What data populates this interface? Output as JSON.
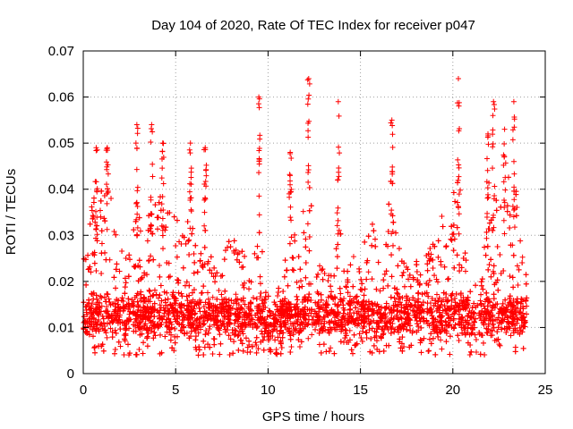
{
  "chart_data": {
    "type": "scatter",
    "title": "Day 104 of 2020, Rate Of TEC Index for receiver p047",
    "xlabel": "GPS time / hours",
    "ylabel": "ROTI / TECUs",
    "xlim": [
      0,
      25
    ],
    "ylim": [
      0,
      0.07
    ],
    "x_ticks": [
      0,
      5,
      10,
      15,
      20,
      25
    ],
    "x_tick_labels": [
      "0",
      "5",
      "10",
      "15",
      "20",
      "25"
    ],
    "y_ticks": [
      0,
      0.01,
      0.02,
      0.03,
      0.04,
      0.05,
      0.06,
      0.07
    ],
    "y_tick_labels": [
      "0",
      "0.01",
      "0.02",
      "0.03",
      "0.04",
      "0.05",
      "0.06",
      "0.07"
    ],
    "grid": true,
    "marker": "+",
    "series_color": "#ff0000",
    "series": [
      {
        "name": "ROTI",
        "x_range": [
          0,
          24
        ],
        "typical_range": [
          0.004,
          0.035
        ],
        "median_band": [
          0.008,
          0.02
        ],
        "peak_points": [
          {
            "x": 0.7,
            "y": 0.049
          },
          {
            "x": 1.3,
            "y": 0.049
          },
          {
            "x": 2.9,
            "y": 0.054
          },
          {
            "x": 3.7,
            "y": 0.054
          },
          {
            "x": 4.3,
            "y": 0.05
          },
          {
            "x": 5.8,
            "y": 0.05
          },
          {
            "x": 6.6,
            "y": 0.049
          },
          {
            "x": 9.5,
            "y": 0.06
          },
          {
            "x": 11.2,
            "y": 0.048
          },
          {
            "x": 12.2,
            "y": 0.064
          },
          {
            "x": 13.8,
            "y": 0.059
          },
          {
            "x": 16.7,
            "y": 0.055
          },
          {
            "x": 20.3,
            "y": 0.064
          },
          {
            "x": 21.9,
            "y": 0.052
          },
          {
            "x": 22.2,
            "y": 0.059
          },
          {
            "x": 23.3,
            "y": 0.059
          },
          {
            "x": 22.8,
            "y": 0.053
          }
        ]
      }
    ]
  }
}
